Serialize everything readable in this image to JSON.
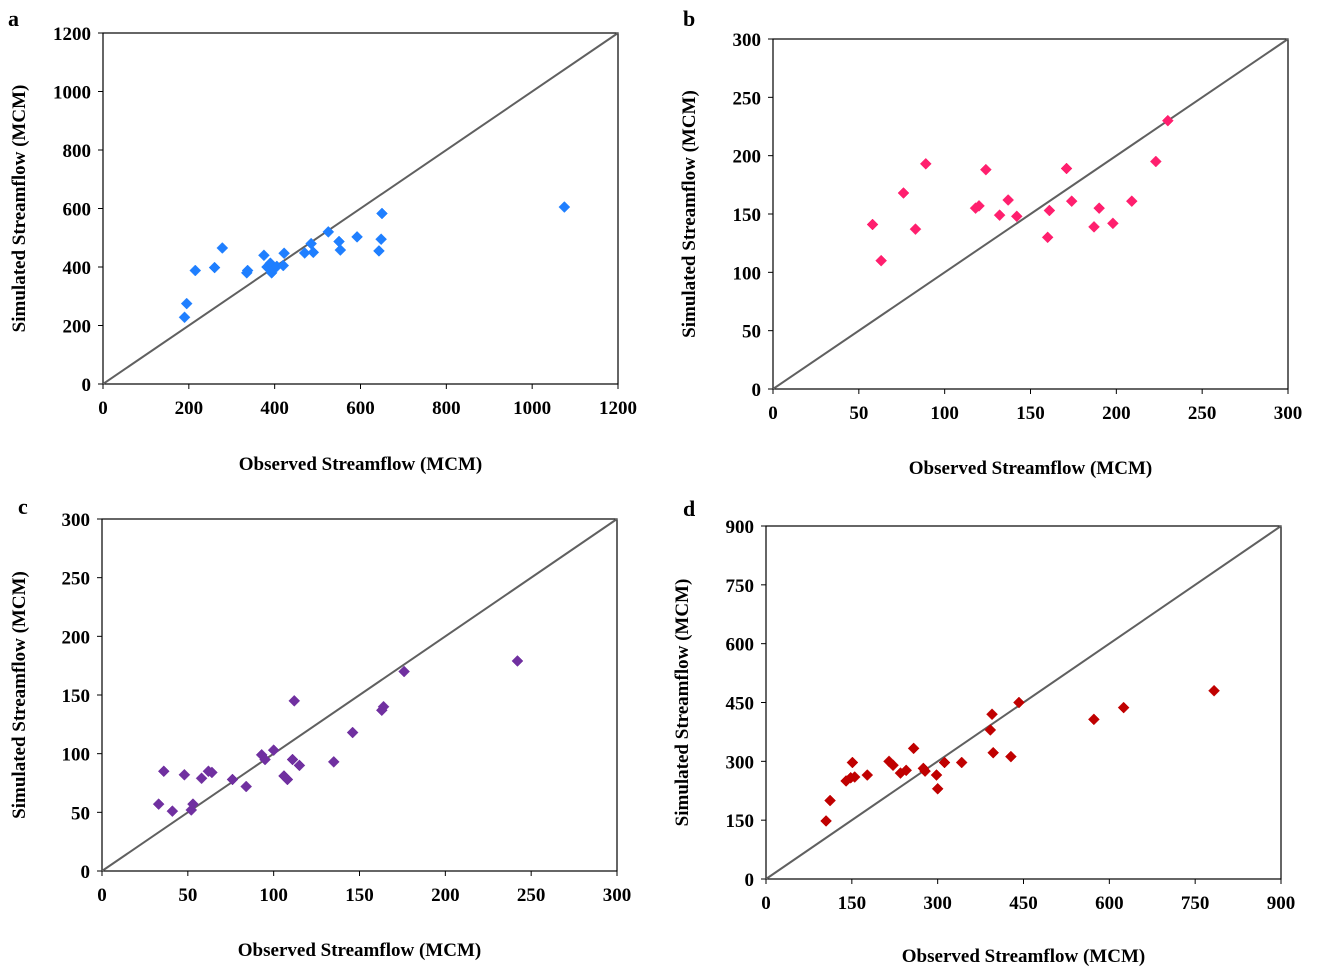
{
  "chart_data": [
    {
      "panel_label": "a",
      "type": "scatter",
      "xlabel": "Observed Streamflow (MCM)",
      "ylabel": "Simulated Streamflow (MCM)",
      "xlim": [
        0,
        1200
      ],
      "ylim": [
        0,
        1200
      ],
      "xticks": [
        0,
        200,
        400,
        600,
        800,
        1000,
        1200
      ],
      "yticks": [
        0,
        200,
        400,
        600,
        800,
        1000,
        1200
      ],
      "marker_color": "#1f7fff",
      "reference_line": "1:1",
      "points": [
        [
          190,
          228
        ],
        [
          195,
          275
        ],
        [
          215,
          388
        ],
        [
          260,
          398
        ],
        [
          278,
          465
        ],
        [
          335,
          380
        ],
        [
          337,
          388
        ],
        [
          375,
          440
        ],
        [
          382,
          400
        ],
        [
          390,
          413
        ],
        [
          393,
          380
        ],
        [
          396,
          392
        ],
        [
          405,
          402
        ],
        [
          420,
          405
        ],
        [
          422,
          447
        ],
        [
          470,
          448
        ],
        [
          485,
          480
        ],
        [
          490,
          450
        ],
        [
          525,
          520
        ],
        [
          550,
          487
        ],
        [
          553,
          458
        ],
        [
          592,
          503
        ],
        [
          643,
          455
        ],
        [
          648,
          495
        ],
        [
          650,
          583
        ],
        [
          1075,
          605
        ]
      ]
    },
    {
      "panel_label": "b",
      "type": "scatter",
      "xlabel": "Observed Streamflow (MCM)",
      "ylabel": "Simulated Streamflow (MCM)",
      "xlim": [
        0,
        300
      ],
      "ylim": [
        0,
        300
      ],
      "xticks": [
        0,
        50,
        100,
        150,
        200,
        250,
        300
      ],
      "yticks": [
        0,
        50,
        100,
        150,
        200,
        250,
        300
      ],
      "marker_color": "#ff1f6e",
      "reference_line": "1:1",
      "points": [
        [
          58,
          141
        ],
        [
          63,
          110
        ],
        [
          76,
          168
        ],
        [
          83,
          137
        ],
        [
          89,
          193
        ],
        [
          118,
          155
        ],
        [
          120,
          157
        ],
        [
          124,
          188
        ],
        [
          132,
          149
        ],
        [
          137,
          162
        ],
        [
          142,
          148
        ],
        [
          160,
          130
        ],
        [
          161,
          153
        ],
        [
          171,
          189
        ],
        [
          174,
          161
        ],
        [
          187,
          139
        ],
        [
          190,
          155
        ],
        [
          198,
          142
        ],
        [
          209,
          161
        ],
        [
          223,
          195
        ],
        [
          230,
          230
        ]
      ]
    },
    {
      "panel_label": "c",
      "type": "scatter",
      "xlabel": "Observed Streamflow (MCM)",
      "ylabel": "Simulated Streamflow (MCM)",
      "xlim": [
        0,
        300
      ],
      "ylim": [
        0,
        300
      ],
      "xticks": [
        0,
        50,
        100,
        150,
        200,
        250,
        300
      ],
      "yticks": [
        0,
        50,
        100,
        150,
        200,
        250,
        300
      ],
      "marker_color": "#7030a0",
      "reference_line": "1:1",
      "points": [
        [
          33,
          57
        ],
        [
          36,
          85
        ],
        [
          41,
          51
        ],
        [
          48,
          82
        ],
        [
          52,
          52
        ],
        [
          53,
          57
        ],
        [
          58,
          79
        ],
        [
          62,
          85
        ],
        [
          64,
          84
        ],
        [
          76,
          78
        ],
        [
          84,
          72
        ],
        [
          93,
          99
        ],
        [
          95,
          95
        ],
        [
          100,
          103
        ],
        [
          106,
          81
        ],
        [
          108,
          78
        ],
        [
          111,
          95
        ],
        [
          112,
          145
        ],
        [
          115,
          90
        ],
        [
          135,
          93
        ],
        [
          146,
          118
        ],
        [
          163,
          137
        ],
        [
          164,
          140
        ],
        [
          176,
          170
        ],
        [
          242,
          179
        ]
      ]
    },
    {
      "panel_label": "d",
      "type": "scatter",
      "xlabel": "Observed Streamflow (MCM)",
      "ylabel": "Simulated Streamflow (MCM)",
      "xlim": [
        0,
        900
      ],
      "ylim": [
        0,
        900
      ],
      "xticks": [
        0,
        150,
        300,
        450,
        600,
        750,
        900
      ],
      "yticks": [
        0,
        150,
        300,
        450,
        600,
        750,
        900
      ],
      "marker_color": "#c00000",
      "reference_line": "1:1",
      "points": [
        [
          105,
          148
        ],
        [
          112,
          200
        ],
        [
          140,
          250
        ],
        [
          148,
          258
        ],
        [
          151,
          297
        ],
        [
          155,
          260
        ],
        [
          177,
          265
        ],
        [
          215,
          300
        ],
        [
          222,
          290
        ],
        [
          235,
          270
        ],
        [
          245,
          277
        ],
        [
          258,
          333
        ],
        [
          275,
          282
        ],
        [
          278,
          275
        ],
        [
          298,
          265
        ],
        [
          300,
          230
        ],
        [
          312,
          297
        ],
        [
          342,
          297
        ],
        [
          392,
          380
        ],
        [
          395,
          420
        ],
        [
          397,
          322
        ],
        [
          428,
          312
        ],
        [
          442,
          450
        ],
        [
          573,
          407
        ],
        [
          625,
          437
        ],
        [
          783,
          480
        ]
      ]
    }
  ]
}
